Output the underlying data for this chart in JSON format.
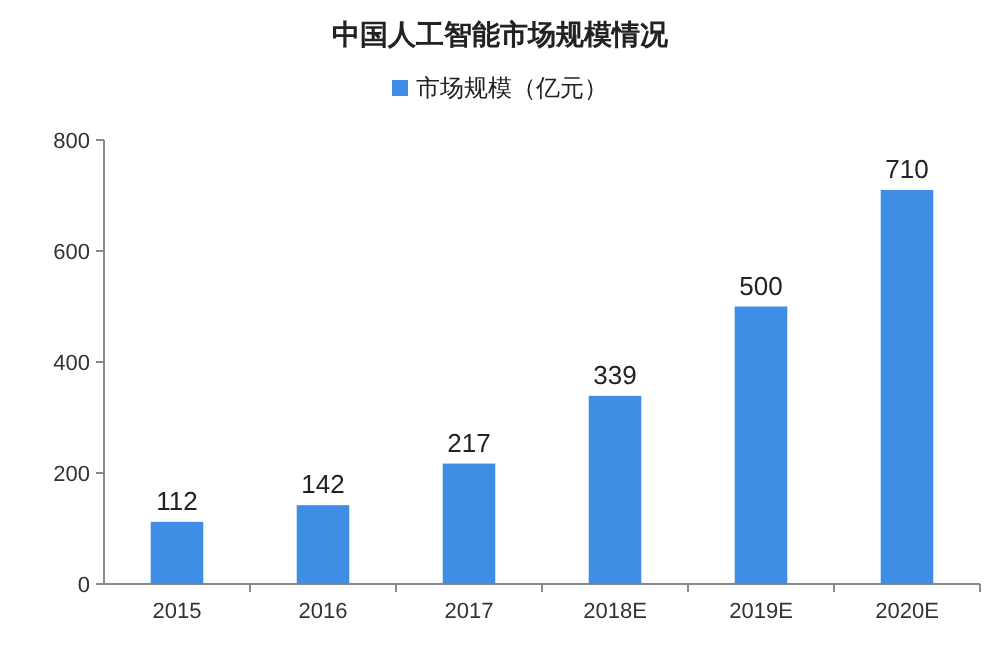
{
  "chart_data": {
    "type": "bar",
    "title": "中国人工智能市场规模情况",
    "categories": [
      "2015",
      "2016",
      "2017",
      "2018E",
      "2019E",
      "2020E"
    ],
    "series": [
      {
        "name": "市场规模（亿元）",
        "color": "#3e8ee6",
        "values": [
          112,
          142,
          217,
          339,
          500,
          710
        ]
      }
    ],
    "ylim": [
      0,
      800
    ],
    "yticks": [
      0,
      200,
      400,
      600,
      800
    ],
    "data_labels": true,
    "legend": "top"
  }
}
